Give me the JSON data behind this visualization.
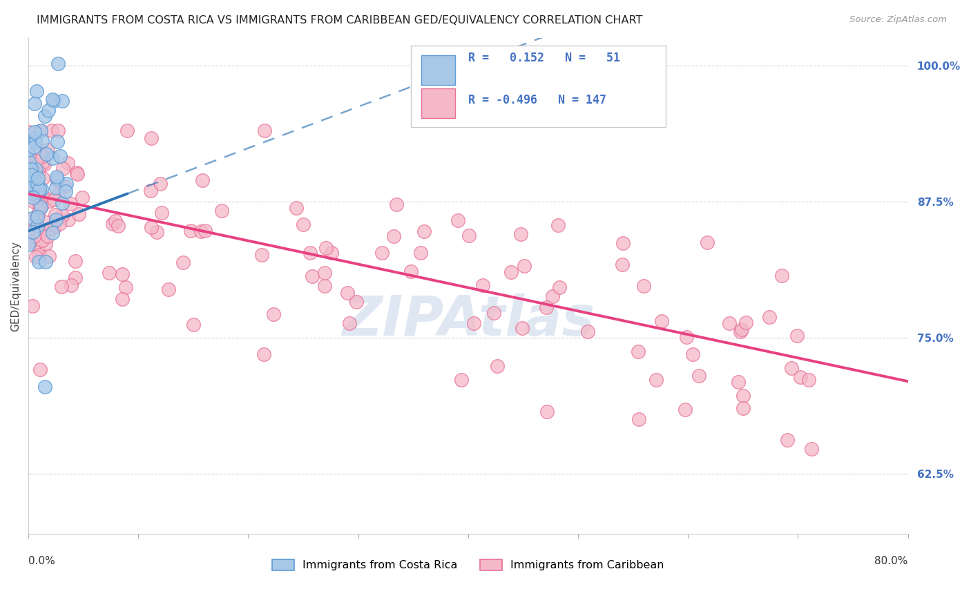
{
  "title": "IMMIGRANTS FROM COSTA RICA VS IMMIGRANTS FROM CARIBBEAN GED/EQUIVALENCY CORRELATION CHART",
  "source": "Source: ZipAtlas.com",
  "ylabel": "GED/Equivalency",
  "right_yticks": [
    62.5,
    75.0,
    87.5,
    100.0
  ],
  "right_yticklabels": [
    "62.5%",
    "75.0%",
    "87.5%",
    "100.0%"
  ],
  "xmin": 0.0,
  "xmax": 80.0,
  "ymin": 57.0,
  "ymax": 102.5,
  "blue_R": 0.152,
  "blue_N": 51,
  "pink_R": -0.496,
  "pink_N": 147,
  "blue_dot_color": "#a8c8e8",
  "blue_edge_color": "#5b9bd5",
  "pink_dot_color": "#f4b8c8",
  "pink_edge_color": "#e87098",
  "blue_line_color": "#2e75b6",
  "pink_line_color": "#e84080",
  "legend_label_blue": "Immigrants from Costa Rica",
  "legend_label_pink": "Immigrants from Caribbean",
  "watermark": "ZIPAtlas",
  "background_color": "#ffffff",
  "grid_color": "#cccccc",
  "title_color": "#222222",
  "right_axis_color": "#4472c4",
  "legend_box_color": "#4472c4",
  "seed": 7,
  "blue_slope": 0.38,
  "blue_intercept": 84.8,
  "pink_slope": -0.215,
  "pink_intercept": 88.2
}
